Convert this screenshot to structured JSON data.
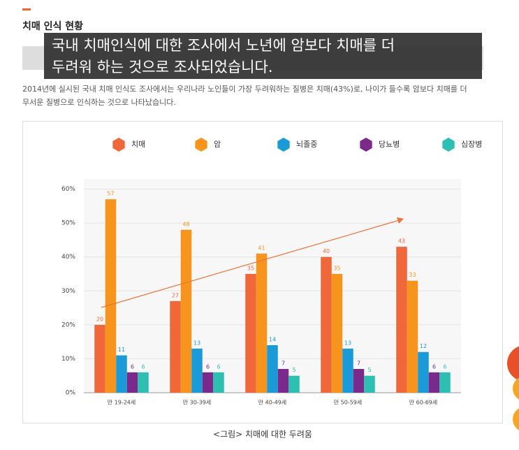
{
  "page": {
    "heading": "치매 인식 현황",
    "overlay": [
      "국내 치매인식에 대한 조사에서 노년에 암보다 치매를 더",
      "두려워 하는 것으로 조사되었습니다."
    ],
    "paragraph": [
      "2014년에 실시된 국내 치매 인식도 조사에서는 우리나라 노인들이 가장 두려워하는 질병은 치매(43%)로, 나이가 들수록 암보다 치매를 더",
      "무서운 질병으로 인식하는 것으로 나타났습니다."
    ],
    "caption": "<그림> 치매에 대한 두려움"
  },
  "chart_data": {
    "type": "bar",
    "categories": [
      "만 19-24세",
      "만 30-39세",
      "만 40-49세",
      "만 50-59세",
      "만 60-69세"
    ],
    "series": [
      {
        "name": "치매",
        "color": "#f0673a",
        "values": [
          20,
          27,
          35,
          40,
          43
        ]
      },
      {
        "name": "암",
        "color": "#f7941d",
        "values": [
          57,
          48,
          41,
          35,
          33
        ]
      },
      {
        "name": "뇌졸중",
        "color": "#1a9ad6",
        "values": [
          11,
          13,
          14,
          13,
          12
        ]
      },
      {
        "name": "당뇨병",
        "color": "#7b2a8b",
        "values": [
          6,
          6,
          7,
          7,
          6
        ]
      },
      {
        "name": "심장병",
        "color": "#2cbfb2",
        "values": [
          6,
          6,
          5,
          5,
          6
        ]
      }
    ],
    "ylim": [
      0,
      63
    ],
    "yticks": [
      {
        "value": 0,
        "label": "0%"
      },
      {
        "value": 10,
        "label": "10%"
      },
      {
        "value": 20,
        "label": "20%"
      },
      {
        "value": 30,
        "label": "30%"
      },
      {
        "value": 40,
        "label": "40%"
      },
      {
        "value": 50,
        "label": "50%"
      },
      {
        "value": 60,
        "label": "60%"
      }
    ],
    "grid": true,
    "legend": "top"
  }
}
